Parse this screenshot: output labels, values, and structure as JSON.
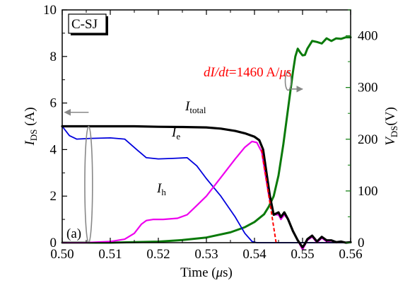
{
  "chart_data": {
    "type": "line",
    "panel_label": "(a)",
    "device_label": "C-SJ",
    "xlabel": "Time (μs)",
    "xlabel_parts": {
      "main": "Time (",
      "mu": "μ",
      "rest": "s)"
    },
    "ylabel_left": {
      "main": "I",
      "sub": "DS",
      "rest": " (A)"
    },
    "ylabel_right": {
      "main": "V",
      "sub": "DS",
      "rest": "(V)"
    },
    "xlim": [
      0.5,
      0.56
    ],
    "ylim_left": [
      0,
      10
    ],
    "ylim_right": [
      0,
      450
    ],
    "x_ticks": [
      0.5,
      0.51,
      0.52,
      0.53,
      0.54,
      0.55,
      0.56
    ],
    "x_tick_labels": [
      "0.50",
      "0.51",
      "0.52",
      "0.53",
      "0.54",
      "0.55",
      "0.56"
    ],
    "y_left_ticks": [
      0,
      2,
      4,
      6,
      8,
      10
    ],
    "y_left_tick_labels": [
      "0",
      "2",
      "4",
      "6",
      "8",
      "10"
    ],
    "y_right_ticks": [
      0,
      100,
      200,
      300,
      400
    ],
    "y_right_tick_labels": [
      "0",
      "100",
      "200",
      "300",
      "400"
    ],
    "colors": {
      "I_total": "#000000",
      "I_e": "#0000dd",
      "I_h": "#ee00ee",
      "V_DS": "#0a7a0a",
      "annotation": "#ff0000",
      "arrow": "#888888"
    },
    "series": [
      {
        "name": "I_total",
        "label_main": "I",
        "label_sub": "total",
        "axis": "left",
        "x": [
          0.5,
          0.505,
          0.51,
          0.515,
          0.52,
          0.525,
          0.53,
          0.533,
          0.536,
          0.538,
          0.54,
          0.541,
          0.5418,
          0.5425,
          0.5432,
          0.544,
          0.545,
          0.5455,
          0.5462,
          0.547,
          0.548,
          0.549,
          0.55,
          0.5505,
          0.551,
          0.552,
          0.553,
          0.554,
          0.555,
          0.556,
          0.557,
          0.558,
          0.559,
          0.56
        ],
        "y": [
          5.0,
          5.0,
          5.0,
          5.0,
          4.98,
          4.97,
          4.95,
          4.9,
          4.8,
          4.7,
          4.55,
          4.4,
          4.0,
          3.0,
          2.0,
          1.2,
          1.3,
          1.1,
          1.3,
          1.0,
          0.5,
          0.1,
          -0.2,
          -0.05,
          0.15,
          0.3,
          0.05,
          0.25,
          0.1,
          0.1,
          0.02,
          0.05,
          0.0,
          0.02
        ]
      },
      {
        "name": "I_e",
        "label_main": "I",
        "label_sub": "e",
        "axis": "left",
        "x": [
          0.5,
          0.5015,
          0.503,
          0.506,
          0.51,
          0.513,
          0.5155,
          0.5175,
          0.52,
          0.523,
          0.526,
          0.528,
          0.53,
          0.533,
          0.536,
          0.538,
          0.5395,
          0.5405,
          0.545,
          0.55,
          0.555,
          0.56
        ],
        "y": [
          5.0,
          4.6,
          4.45,
          4.48,
          4.5,
          4.45,
          4.0,
          3.65,
          3.6,
          3.62,
          3.65,
          3.3,
          2.75,
          2.0,
          1.1,
          0.4,
          0.05,
          0.0,
          0.0,
          0.0,
          0.0,
          0.0
        ]
      },
      {
        "name": "I_h",
        "label_main": "I",
        "label_sub": "h",
        "axis": "left",
        "x": [
          0.5,
          0.505,
          0.51,
          0.513,
          0.515,
          0.5165,
          0.5175,
          0.519,
          0.521,
          0.524,
          0.526,
          0.528,
          0.53,
          0.533,
          0.536,
          0.538,
          0.5395,
          0.5405,
          0.5415,
          0.5422,
          0.543,
          0.544,
          0.545,
          0.5455,
          0.5462,
          0.547,
          0.548,
          0.549,
          0.55,
          0.5505,
          0.551,
          0.552,
          0.553,
          0.554,
          0.555,
          0.556,
          0.557,
          0.558,
          0.559,
          0.56
        ],
        "y": [
          0.0,
          0.0,
          0.05,
          0.15,
          0.4,
          0.8,
          0.95,
          1.0,
          1.0,
          1.05,
          1.2,
          1.6,
          2.0,
          2.8,
          3.6,
          4.1,
          4.35,
          4.3,
          3.9,
          3.0,
          2.0,
          1.2,
          1.2,
          1.0,
          1.2,
          1.0,
          0.5,
          0.1,
          -0.3,
          -0.1,
          0.1,
          0.25,
          0.0,
          0.2,
          0.05,
          0.08,
          0.0,
          0.05,
          0.0,
          0.02
        ]
      },
      {
        "name": "V_DS",
        "label_main": "V",
        "label_sub": "DS",
        "axis": "right",
        "x": [
          0.5,
          0.51,
          0.52,
          0.525,
          0.53,
          0.535,
          0.538,
          0.54,
          0.542,
          0.543,
          0.544,
          0.545,
          0.546,
          0.547,
          0.548,
          0.5485,
          0.549,
          0.5495,
          0.55,
          0.5505,
          0.551,
          0.552,
          0.553,
          0.554,
          0.555,
          0.556,
          0.557,
          0.558,
          0.559,
          0.56
        ],
        "y": [
          0,
          0,
          2,
          5,
          10,
          20,
          30,
          40,
          55,
          70,
          90,
          130,
          190,
          260,
          330,
          360,
          375,
          368,
          362,
          363,
          375,
          390,
          388,
          385,
          395,
          390,
          395,
          394,
          397,
          397
        ]
      }
    ],
    "annotations": {
      "slope_text": {
        "main": "dI/dt",
        "rest": "=1460 A/",
        "mu": "μ",
        "end": "s"
      },
      "slope_line": {
        "x": [
          0.5445,
          0.5414
        ],
        "y": [
          0.0,
          4.1
        ]
      },
      "ellipse_left": {
        "cx": 0.5055,
        "cy": 2.5,
        "rx": 0.0008,
        "ry": 2.5
      },
      "arrow_left": {
        "x_from": 0.5055,
        "x_to": 0.5005,
        "y": 5.6
      },
      "ellipse_right": {
        "cx": 0.547,
        "cy": 6.95,
        "rx": 0.0006,
        "ry": 0.4
      },
      "arrow_right": {
        "x_from": 0.5475,
        "x_to": 0.55,
        "y": 6.6
      }
    }
  }
}
